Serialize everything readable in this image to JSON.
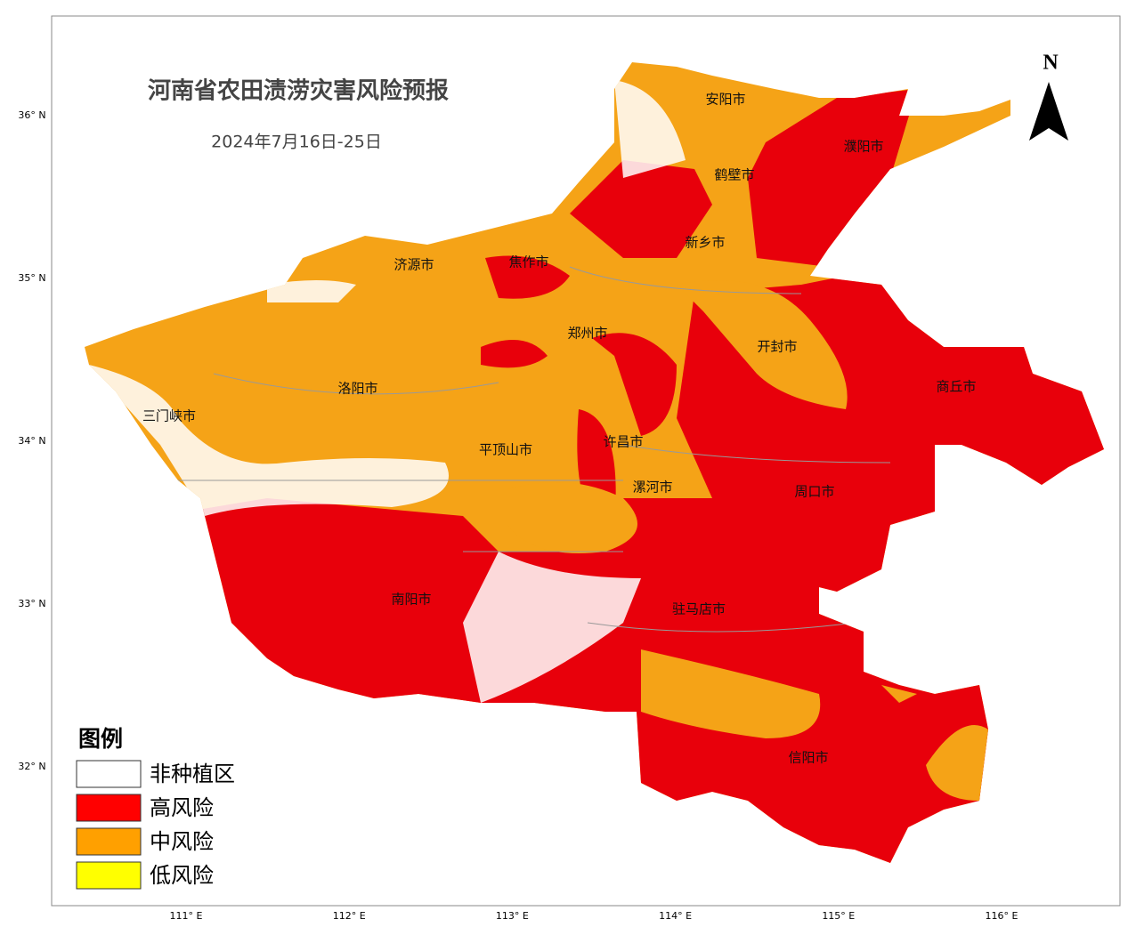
{
  "header": {
    "title": "河南省农田渍涝灾害风险预报",
    "subtitle": "2024年7月16日-25日"
  },
  "north_label": "N",
  "lat_labels": [
    "36° N",
    "35° N",
    "34° N",
    "33° N",
    "32° N"
  ],
  "lon_labels": [
    "111° E",
    "112° E",
    "113° E",
    "114° E",
    "115° E",
    "116° E"
  ],
  "cities": [
    "安阳市",
    "濮阳市",
    "鹤壁市",
    "新乡市",
    "济源市",
    "焦作市",
    "郑州市",
    "开封市",
    "洛阳市",
    "商丘市",
    "三门峡市",
    "平顶山市",
    "许昌市",
    "漯河市",
    "周口市",
    "南阳市",
    "驻马店市",
    "信阳市"
  ],
  "legend": {
    "title": "图例",
    "items": [
      {
        "label": "非种植区",
        "color": "#ffffff"
      },
      {
        "label": "高风险",
        "color": "#ff0000"
      },
      {
        "label": "中风险",
        "color": "#ffa000"
      },
      {
        "label": "低风险",
        "color": "#ffff00"
      }
    ]
  }
}
